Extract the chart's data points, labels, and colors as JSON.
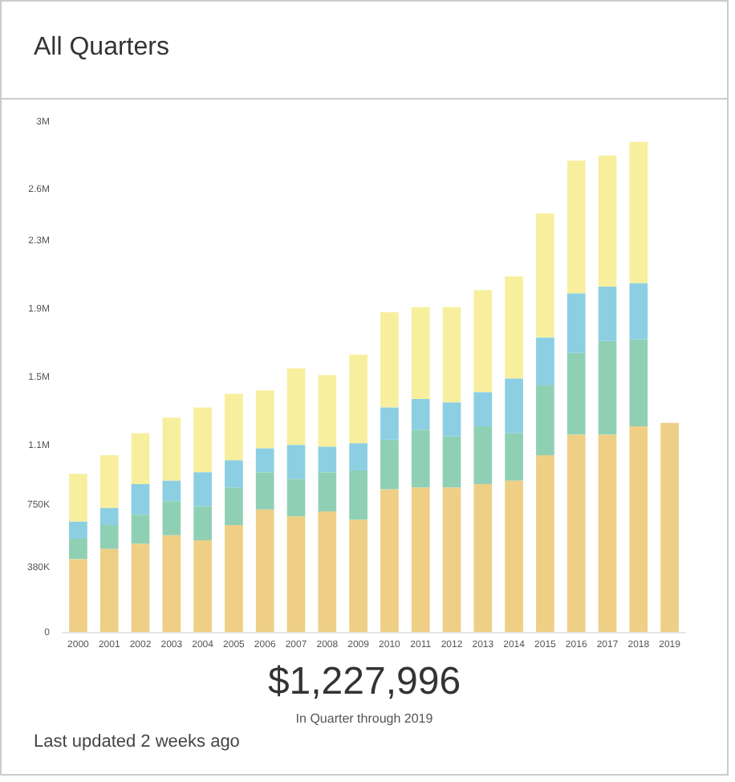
{
  "chart_data": {
    "type": "bar",
    "title": "All Quarters",
    "stacked": true,
    "categories": [
      "2000",
      "2001",
      "2002",
      "2003",
      "2004",
      "2005",
      "2006",
      "2007",
      "2008",
      "2009",
      "2010",
      "2011",
      "2012",
      "2013",
      "2014",
      "2015",
      "2016",
      "2017",
      "2018",
      "2019"
    ],
    "series": [
      {
        "color": "#eecf85",
        "values": [
          430000,
          490000,
          520000,
          570000,
          540000,
          630000,
          720000,
          680000,
          710000,
          660000,
          840000,
          850000,
          850000,
          870000,
          890000,
          1040000,
          1160000,
          1160000,
          1210000,
          1230000
        ]
      },
      {
        "color": "#8fd0b5",
        "values": [
          120000,
          140000,
          170000,
          200000,
          200000,
          220000,
          220000,
          220000,
          230000,
          290000,
          290000,
          340000,
          300000,
          340000,
          280000,
          410000,
          480000,
          550000,
          510000,
          null
        ]
      },
      {
        "color": "#8ccfe3",
        "values": [
          100000,
          100000,
          180000,
          120000,
          200000,
          160000,
          140000,
          200000,
          150000,
          160000,
          190000,
          180000,
          200000,
          200000,
          320000,
          280000,
          350000,
          320000,
          330000,
          null
        ]
      },
      {
        "color": "#f7ef9e",
        "values": [
          280000,
          310000,
          300000,
          370000,
          380000,
          390000,
          340000,
          450000,
          420000,
          520000,
          560000,
          540000,
          560000,
          600000,
          600000,
          730000,
          780000,
          770000,
          830000,
          null
        ]
      }
    ],
    "ylim": [
      0,
      3000000
    ],
    "yticks": [
      0,
      {
        "value": 380000,
        "label": "380K"
      },
      {
        "value": 750000,
        "label": "750K"
      },
      {
        "value": 1100000,
        "label": "1.1M"
      },
      {
        "value": 1500000,
        "label": "1.5M"
      },
      {
        "value": 1900000,
        "label": "1.9M"
      },
      {
        "value": 2300000,
        "label": "2.3M"
      },
      {
        "value": 2600000,
        "label": "2.6M"
      },
      {
        "value": 3000000,
        "label": "3M"
      }
    ],
    "annotations": [
      "$1,227,996",
      "In Quarter through 2019",
      "Last updated 2 weeks ago"
    ]
  }
}
